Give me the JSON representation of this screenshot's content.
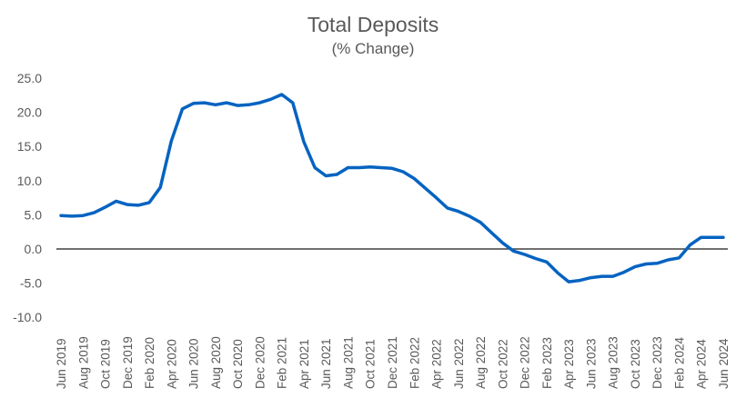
{
  "chart_data": {
    "type": "line",
    "title": "Total Deposits",
    "subtitle": "(% Change)",
    "xlabel": "",
    "ylabel": "",
    "ylim": [
      -10,
      25
    ],
    "yticks": [
      "25.0",
      "20.0",
      "15.0",
      "10.0",
      "5.0",
      "0.0",
      "-5.0",
      "-10.0"
    ],
    "ytick_values": [
      25,
      20,
      15,
      10,
      5,
      0,
      -5,
      -10
    ],
    "grid": false,
    "legend": null,
    "xtick_labels": [
      "Jun 2019",
      "Aug 2019",
      "Oct 2019",
      "Dec 2019",
      "Feb 2020",
      "Apr 2020",
      "Jun 2020",
      "Aug 2020",
      "Oct 2020",
      "Dec 2020",
      "Feb 2021",
      "Apr 2021",
      "Jun 2021",
      "Aug 2021",
      "Oct 2021",
      "Dec 2021",
      "Feb 2022",
      "Apr 2022",
      "Jun 2022",
      "Aug 2022",
      "Oct 2022",
      "Dec 2022",
      "Feb 2023",
      "Apr 2023",
      "Jun 2023",
      "Aug 2023",
      "Oct 2023",
      "Dec 2023",
      "Feb 2024",
      "Apr 2024",
      "Jun 2024"
    ],
    "x": [
      "Jun 2019",
      "Jul 2019",
      "Aug 2019",
      "Sep 2019",
      "Oct 2019",
      "Nov 2019",
      "Dec 2019",
      "Jan 2020",
      "Feb 2020",
      "Mar 2020",
      "Apr 2020",
      "May 2020",
      "Jun 2020",
      "Jul 2020",
      "Aug 2020",
      "Sep 2020",
      "Oct 2020",
      "Nov 2020",
      "Dec 2020",
      "Jan 2021",
      "Feb 2021",
      "Mar 2021",
      "Apr 2021",
      "May 2021",
      "Jun 2021",
      "Jul 2021",
      "Aug 2021",
      "Sep 2021",
      "Oct 2021",
      "Nov 2021",
      "Dec 2021",
      "Jan 2022",
      "Feb 2022",
      "Mar 2022",
      "Apr 2022",
      "May 2022",
      "Jun 2022",
      "Jul 2022",
      "Aug 2022",
      "Sep 2022",
      "Oct 2022",
      "Nov 2022",
      "Dec 2022",
      "Jan 2023",
      "Feb 2023",
      "Mar 2023",
      "Apr 2023",
      "May 2023",
      "Jun 2023",
      "Jul 2023",
      "Aug 2023",
      "Sep 2023",
      "Oct 2023",
      "Nov 2023",
      "Dec 2023",
      "Jan 2024",
      "Feb 2024",
      "Mar 2024",
      "Apr 2024",
      "May 2024",
      "Jun 2024"
    ],
    "series": [
      {
        "name": "Total Deposits",
        "color": "#0563C1",
        "values": [
          4.9,
          4.8,
          4.9,
          5.3,
          6.1,
          7.0,
          6.5,
          6.4,
          6.8,
          9.0,
          15.8,
          20.5,
          21.3,
          21.4,
          21.1,
          21.4,
          21.0,
          21.1,
          21.4,
          21.9,
          22.6,
          21.4,
          15.7,
          11.9,
          10.7,
          10.9,
          11.9,
          11.9,
          12.0,
          11.9,
          11.8,
          11.3,
          10.3,
          8.9,
          7.5,
          6.0,
          5.5,
          4.8,
          3.9,
          2.4,
          0.9,
          -0.3,
          -0.8,
          -1.4,
          -1.9,
          -3.5,
          -4.8,
          -4.6,
          -4.2,
          -4.0,
          -4.0,
          -3.4,
          -2.6,
          -2.2,
          -2.1,
          -1.6,
          -1.3,
          0.6,
          1.7,
          1.7,
          1.7
        ]
      }
    ]
  }
}
